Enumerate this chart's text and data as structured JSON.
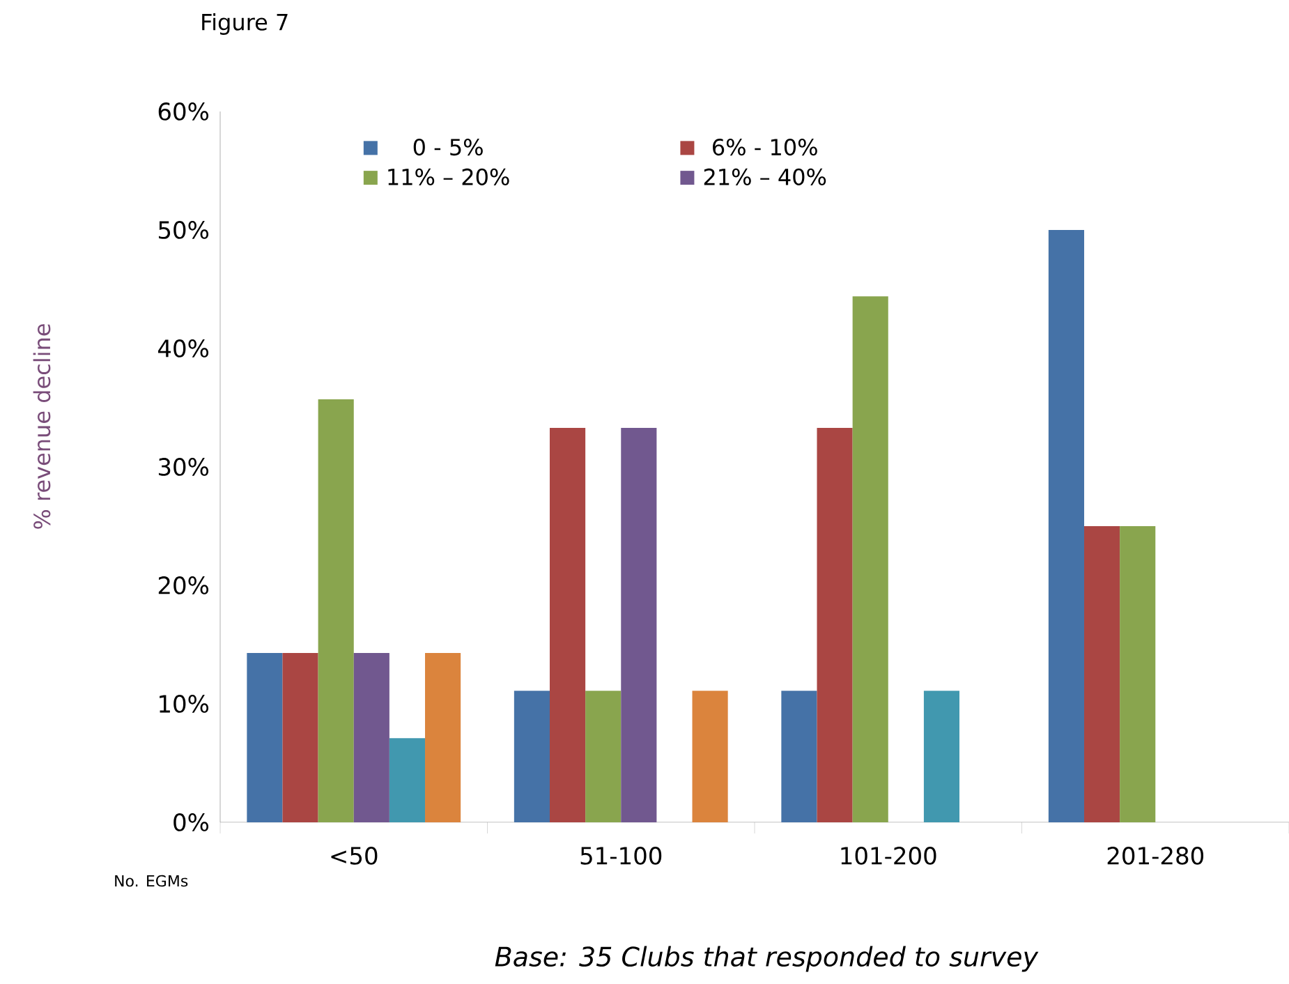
{
  "chart_data": {
    "type": "bar",
    "title": "Figure 7",
    "xlabel": "No. EGMs",
    "ylabel": "% revenue decline",
    "annotations": [
      "*Base: 35 Clubs that responded to survey*"
    ],
    "categories": [
      "<50",
      "51-100",
      "101-200",
      "201-280"
    ],
    "series": [
      {
        "name": "0 - 5%",
        "color": "#4572a7",
        "values": [
          14.3,
          11.1,
          11.1,
          50
        ]
      },
      {
        "name": "6% - 10%",
        "color": "#aa4643",
        "values": [
          14.3,
          33.3,
          33.3,
          25
        ]
      },
      {
        "name": "11% – 20%",
        "color": "#89a54e",
        "values": [
          35.7,
          11.1,
          44.4,
          25
        ]
      },
      {
        "name": "21% – 40%",
        "color": "#71588f",
        "values": [
          14.3,
          33.3,
          null,
          null
        ]
      },
      {
        "color": "#4198af",
        "values": [
          7.1,
          null,
          11.1,
          null
        ]
      },
      {
        "color": "#db843d",
        "values": [
          14.3,
          11.1,
          null,
          null
        ]
      }
    ],
    "ylim": [
      0,
      60
    ],
    "yticks": [
      {
        "value": 0,
        "label": "0%"
      },
      {
        "value": 10,
        "label": "10%"
      },
      {
        "value": 20,
        "label": "20%"
      },
      {
        "value": 30,
        "label": "30%"
      },
      {
        "value": 40,
        "label": "40%"
      },
      {
        "value": 50,
        "label": "50%"
      },
      {
        "value": 60,
        "label": "60%"
      }
    ],
    "grid": false,
    "legend": "top"
  }
}
